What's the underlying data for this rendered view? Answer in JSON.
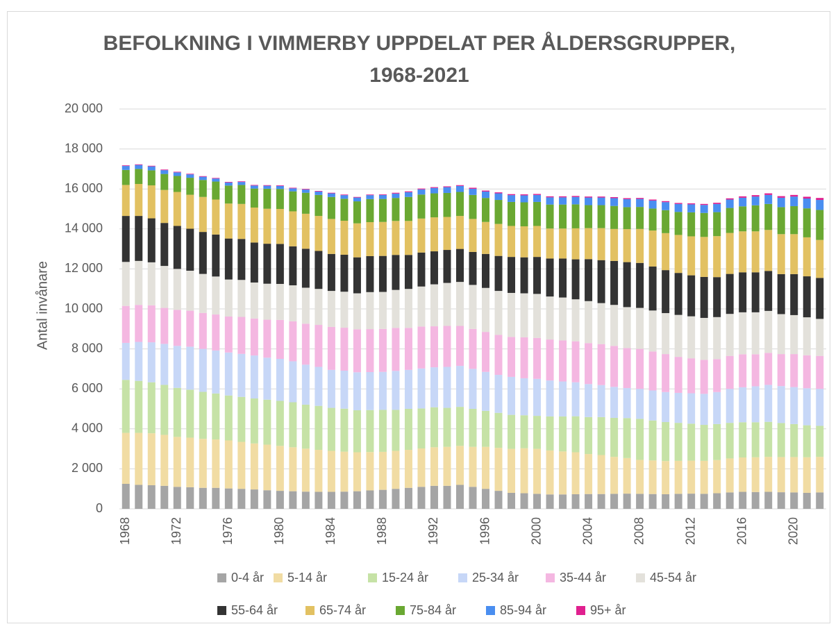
{
  "chart_data": {
    "type": "stacked_bar",
    "title": "BEFOLKNING I VIMMERBY UPPDELAT PER ÅLDERSGRUPPER, 1968-2021",
    "y_label": "Antal invånare",
    "categories": [
      "1968",
      null,
      null,
      null,
      "1972",
      null,
      null,
      null,
      "1976",
      null,
      null,
      null,
      "1980",
      null,
      null,
      null,
      "1984",
      null,
      null,
      null,
      "1988",
      null,
      null,
      null,
      "1992",
      null,
      null,
      null,
      "1996",
      null,
      null,
      null,
      "2000",
      null,
      null,
      null,
      "2004",
      null,
      null,
      null,
      "2008",
      null,
      null,
      null,
      "2012",
      null,
      null,
      null,
      "2016",
      null,
      null,
      null,
      "2020",
      null,
      null
    ],
    "ylim": [
      0,
      20000
    ],
    "yticks": [
      0,
      {
        "value": 2000,
        "label": "2 000"
      },
      {
        "value": 4000,
        "label": "4 000"
      },
      {
        "value": 6000,
        "label": "6 000"
      },
      {
        "value": 8000,
        "label": "8 000"
      },
      {
        "value": 10000,
        "label": "10 000"
      },
      {
        "value": 12000,
        "label": "12 000"
      },
      {
        "value": 14000,
        "label": "14 000"
      },
      {
        "value": 16000,
        "label": "16 000"
      },
      {
        "value": 18000,
        "label": "18 000"
      },
      {
        "value": 20000,
        "label": "20 000"
      }
    ],
    "grid": true,
    "legend": "bottom",
    "series": [
      {
        "name": "0-4 år",
        "color": "#a5a5a5",
        "values": [
          1250,
          1200,
          1180,
          1150,
          1100,
          1080,
          1050,
          1050,
          1020,
          1000,
          970,
          930,
          900,
          880,
          860,
          850,
          850,
          860,
          880,
          920,
          950,
          1000,
          1050,
          1100,
          1150,
          1150,
          1200,
          1100,
          1000,
          900,
          800,
          780,
          750,
          720,
          720,
          730,
          740,
          740,
          750,
          760,
          750,
          740,
          730,
          750,
          760,
          750,
          780,
          820,
          850,
          840,
          850,
          830,
          820,
          800,
          820
        ]
      },
      {
        "name": "5-14 år",
        "color": "#f1dca3",
        "values": [
          2550,
          2600,
          2600,
          2550,
          2500,
          2480,
          2450,
          2420,
          2400,
          2350,
          2300,
          2280,
          2250,
          2200,
          2150,
          2100,
          2050,
          2000,
          1950,
          1920,
          1900,
          1900,
          1900,
          1920,
          1930,
          1950,
          1950,
          2000,
          2100,
          2150,
          2200,
          2250,
          2250,
          2200,
          2150,
          2100,
          2000,
          1950,
          1850,
          1780,
          1700,
          1680,
          1660,
          1650,
          1650,
          1650,
          1660,
          1700,
          1720,
          1740,
          1750,
          1760,
          1770,
          1780,
          1780
        ]
      },
      {
        "name": "15-24 år",
        "color": "#c6e2a6",
        "values": [
          2650,
          2600,
          2550,
          2500,
          2450,
          2400,
          2350,
          2300,
          2250,
          2250,
          2250,
          2250,
          2250,
          2250,
          2200,
          2200,
          2150,
          2150,
          2100,
          2100,
          2100,
          2050,
          2050,
          2000,
          2000,
          1950,
          1950,
          1900,
          1800,
          1750,
          1700,
          1650,
          1650,
          1700,
          1750,
          1800,
          1850,
          1900,
          1950,
          2000,
          2050,
          2000,
          1950,
          1900,
          1850,
          1800,
          1800,
          1780,
          1760,
          1750,
          1750,
          1700,
          1650,
          1600,
          1550
        ]
      },
      {
        "name": "25-34 år",
        "color": "#c7d7f7",
        "values": [
          1850,
          1950,
          2000,
          2050,
          2100,
          2150,
          2150,
          2150,
          2150,
          2150,
          2150,
          2100,
          2100,
          2050,
          2000,
          1950,
          1900,
          1900,
          1900,
          1900,
          1900,
          1950,
          1950,
          2000,
          2000,
          2050,
          2050,
          2000,
          1950,
          1900,
          1900,
          1850,
          1850,
          1800,
          1750,
          1700,
          1650,
          1600,
          1550,
          1500,
          1500,
          1500,
          1500,
          1500,
          1520,
          1550,
          1600,
          1700,
          1750,
          1800,
          1850,
          1850,
          1850,
          1850,
          1850
        ]
      },
      {
        "name": "35-44 år",
        "color": "#f4b7e1",
        "values": [
          1850,
          1850,
          1850,
          1800,
          1800,
          1800,
          1800,
          1800,
          1800,
          1850,
          1850,
          1900,
          1950,
          2000,
          2050,
          2100,
          2150,
          2150,
          2150,
          2150,
          2150,
          2150,
          2100,
          2100,
          2050,
          2050,
          2000,
          2000,
          2000,
          2000,
          2000,
          2050,
          2050,
          2050,
          2050,
          2050,
          2050,
          2050,
          2050,
          2000,
          2000,
          1950,
          1900,
          1800,
          1750,
          1700,
          1650,
          1650,
          1650,
          1600,
          1600,
          1600,
          1650,
          1650,
          1650
        ]
      },
      {
        "name": "45-54 år",
        "color": "#e3e1db",
        "values": [
          2200,
          2200,
          2150,
          2100,
          2050,
          2000,
          1950,
          1900,
          1850,
          1850,
          1800,
          1800,
          1800,
          1800,
          1800,
          1800,
          1800,
          1800,
          1800,
          1850,
          1850,
          1900,
          1950,
          2000,
          2100,
          2150,
          2200,
          2200,
          2200,
          2200,
          2200,
          2200,
          2200,
          2150,
          2150,
          2100,
          2100,
          2050,
          2050,
          2050,
          2050,
          2050,
          2050,
          2100,
          2100,
          2100,
          2100,
          2100,
          2100,
          2100,
          2100,
          2000,
          1950,
          1900,
          1850
        ]
      },
      {
        "name": "55-64 år",
        "color": "#333333",
        "values": [
          2300,
          2250,
          2200,
          2150,
          2150,
          2100,
          2100,
          2100,
          2050,
          2050,
          2000,
          2000,
          2000,
          1950,
          1950,
          1900,
          1850,
          1850,
          1800,
          1800,
          1800,
          1750,
          1700,
          1700,
          1650,
          1650,
          1650,
          1650,
          1700,
          1750,
          1800,
          1800,
          1850,
          1900,
          1950,
          2000,
          2100,
          2150,
          2200,
          2250,
          2250,
          2200,
          2150,
          2100,
          2050,
          2050,
          2000,
          2000,
          2000,
          2000,
          2000,
          2000,
          2050,
          2050,
          2050
        ]
      },
      {
        "name": "65-74 år",
        "color": "#e2c162",
        "values": [
          1550,
          1600,
          1650,
          1650,
          1700,
          1700,
          1750,
          1750,
          1750,
          1750,
          1750,
          1750,
          1750,
          1750,
          1750,
          1750,
          1750,
          1700,
          1700,
          1700,
          1700,
          1700,
          1700,
          1700,
          1700,
          1650,
          1650,
          1650,
          1600,
          1600,
          1550,
          1550,
          1550,
          1500,
          1500,
          1550,
          1550,
          1600,
          1600,
          1650,
          1700,
          1800,
          1850,
          1900,
          1950,
          2000,
          2050,
          2050,
          2050,
          2050,
          2050,
          2000,
          2000,
          1950,
          1900
        ]
      },
      {
        "name": "75-84 år",
        "color": "#6aa832",
        "values": [
          750,
          750,
          750,
          800,
          800,
          850,
          850,
          900,
          900,
          950,
          950,
          1000,
          1000,
          1000,
          1050,
          1050,
          1100,
          1100,
          1100,
          1150,
          1150,
          1150,
          1200,
          1200,
          1200,
          1200,
          1200,
          1200,
          1200,
          1200,
          1200,
          1200,
          1200,
          1200,
          1200,
          1200,
          1150,
          1150,
          1150,
          1100,
          1100,
          1100,
          1150,
          1150,
          1200,
          1200,
          1200,
          1250,
          1250,
          1300,
          1300,
          1350,
          1400,
          1450,
          1500
        ]
      },
      {
        "name": "85-94 år",
        "color": "#4a8ef0",
        "values": [
          200,
          200,
          200,
          190,
          180,
          170,
          160,
          150,
          150,
          150,
          150,
          150,
          150,
          150,
          160,
          170,
          180,
          180,
          190,
          200,
          200,
          220,
          240,
          260,
          270,
          290,
          300,
          310,
          320,
          330,
          340,
          350,
          350,
          360,
          360,
          370,
          380,
          380,
          390,
          400,
          400,
          400,
          400,
          400,
          400,
          400,
          410,
          420,
          430,
          440,
          450,
          470,
          480,
          490,
          500
        ]
      },
      {
        "name": "95+ år",
        "color": "#e0208f",
        "values": [
          30,
          30,
          30,
          30,
          30,
          30,
          30,
          30,
          30,
          30,
          30,
          30,
          30,
          30,
          30,
          30,
          30,
          30,
          30,
          30,
          30,
          40,
          40,
          40,
          40,
          40,
          40,
          50,
          50,
          50,
          50,
          50,
          50,
          50,
          50,
          50,
          50,
          50,
          50,
          50,
          50,
          50,
          50,
          50,
          50,
          50,
          60,
          60,
          70,
          70,
          80,
          80,
          80,
          90,
          100
        ]
      }
    ]
  }
}
